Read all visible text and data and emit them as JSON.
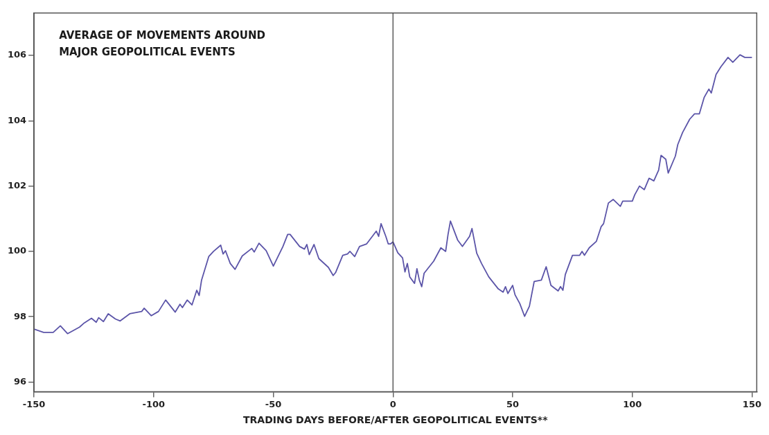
{
  "chart_data": {
    "type": "line",
    "title": "AVERAGE OF MOVEMENTS AROUND MAJOR GEOPOLITICAL EVENTS",
    "xlabel": "TRADING DAYS BEFORE/AFTER GEOPOLITICAL EVENTS**",
    "xlim": [
      -150,
      152
    ],
    "xticks": [
      -150,
      -100,
      -50,
      0,
      50,
      100,
      150
    ],
    "ylim": [
      95.7,
      107.3
    ],
    "yticks": [
      96,
      98,
      100,
      102,
      104,
      106
    ],
    "grid": false,
    "legend": false,
    "marker": "none",
    "line_style": "solid",
    "ref_lines": [
      {
        "axis": "x",
        "value": 0,
        "color": "#444444"
      }
    ],
    "series": [
      {
        "color": "#5b54a8",
        "x": [
          -150,
          -146,
          -142,
          -139,
          -136,
          -131,
          -129,
          -126,
          -124,
          -123,
          -121,
          -119,
          -116,
          -114,
          -110,
          -105,
          -104,
          -101,
          -98,
          -95,
          -91,
          -89,
          -88,
          -86,
          -84,
          -82,
          -81,
          -80,
          -77,
          -75,
          -72,
          -71,
          -70,
          -68,
          -66,
          -63,
          -59,
          -58,
          -56,
          -53,
          -50,
          -46,
          -44,
          -43,
          -39,
          -37,
          -36,
          -35,
          -33,
          -31,
          -27,
          -25,
          -24,
          -21,
          -19,
          -18,
          -16,
          -14,
          -11,
          -7,
          -6,
          -5,
          -3,
          -2,
          -1,
          0,
          2,
          4,
          5,
          6,
          7,
          9,
          10,
          11,
          12,
          13,
          17,
          20,
          22,
          23,
          24,
          27,
          29,
          32,
          33,
          35,
          37,
          40,
          44,
          46,
          47,
          48,
          50,
          51,
          53,
          55,
          57,
          59,
          62,
          64,
          66,
          69,
          70,
          71,
          72,
          75,
          78,
          79,
          80,
          82,
          85,
          87,
          88,
          90,
          92,
          95,
          96,
          100,
          101,
          103,
          105,
          107,
          109,
          111,
          112,
          114,
          115,
          118,
          119,
          121,
          124,
          126,
          128,
          130,
          132,
          133,
          135,
          137,
          140,
          142,
          145,
          147,
          150
        ],
        "values": [
          97.62,
          97.52,
          97.52,
          97.72,
          97.48,
          97.68,
          97.81,
          97.95,
          97.83,
          97.97,
          97.85,
          98.09,
          97.93,
          97.87,
          98.09,
          98.16,
          98.26,
          98.03,
          98.16,
          98.51,
          98.14,
          98.38,
          98.28,
          98.51,
          98.36,
          98.81,
          98.65,
          99.12,
          99.84,
          100.0,
          100.19,
          99.92,
          100.02,
          99.63,
          99.45,
          99.86,
          100.09,
          99.98,
          100.25,
          100.02,
          99.55,
          100.15,
          100.52,
          100.52,
          100.15,
          100.07,
          100.21,
          99.9,
          100.21,
          99.78,
          99.51,
          99.26,
          99.35,
          99.88,
          99.92,
          100.0,
          99.84,
          100.15,
          100.23,
          100.62,
          100.46,
          100.85,
          100.46,
          100.23,
          100.23,
          100.29,
          99.96,
          99.8,
          99.37,
          99.63,
          99.22,
          99.02,
          99.47,
          99.12,
          98.92,
          99.33,
          99.7,
          100.11,
          100.0,
          100.52,
          100.93,
          100.35,
          100.15,
          100.46,
          100.7,
          99.94,
          99.63,
          99.22,
          98.85,
          98.75,
          98.92,
          98.71,
          98.96,
          98.67,
          98.4,
          98.01,
          98.32,
          99.08,
          99.12,
          99.53,
          98.96,
          98.79,
          98.92,
          98.81,
          99.29,
          99.88,
          99.88,
          100.0,
          99.88,
          100.11,
          100.31,
          100.76,
          100.85,
          101.48,
          101.59,
          101.38,
          101.54,
          101.54,
          101.73,
          102.0,
          101.89,
          102.24,
          102.16,
          102.49,
          102.94,
          102.82,
          102.4,
          102.92,
          103.27,
          103.64,
          104.05,
          104.21,
          104.21,
          104.71,
          104.97,
          104.85,
          105.42,
          105.65,
          105.94,
          105.79,
          106.02,
          105.94,
          105.94
        ]
      }
    ]
  }
}
